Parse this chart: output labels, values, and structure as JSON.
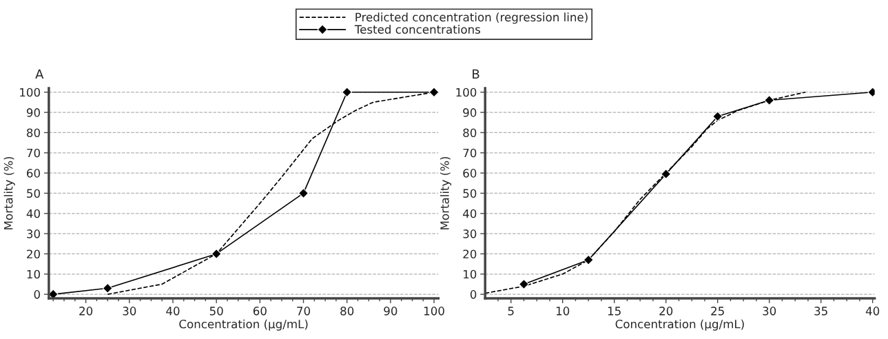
{
  "chart_data": [
    {
      "type": "line",
      "title": "A",
      "xlabel": "Concentration (µg/mL)",
      "ylabel": "Mortality (%)",
      "xlim": [
        11.5,
        101
      ],
      "ylim": [
        -2,
        102
      ],
      "xticks": [
        {
          "value": 12.5,
          "label": null
        },
        {
          "value": 15,
          "label": null
        },
        {
          "value": 17.5,
          "label": null
        },
        20,
        {
          "value": 22.5,
          "label": null
        },
        {
          "value": 25,
          "label": null
        },
        {
          "value": 27.5,
          "label": null
        },
        30,
        {
          "value": 32.5,
          "label": null
        },
        {
          "value": 35,
          "label": null
        },
        {
          "value": 37.5,
          "label": null
        },
        40,
        {
          "value": 42.5,
          "label": null
        },
        {
          "value": 45,
          "label": null
        },
        {
          "value": 47.5,
          "label": null
        },
        50,
        {
          "value": 52.5,
          "label": null
        },
        {
          "value": 55,
          "label": null
        },
        {
          "value": 57.5,
          "label": null
        },
        60,
        {
          "value": 62.5,
          "label": null
        },
        {
          "value": 65,
          "label": null
        },
        {
          "value": 67.5,
          "label": null
        },
        70,
        {
          "value": 72.5,
          "label": null
        },
        {
          "value": 75,
          "label": null
        },
        {
          "value": 77.5,
          "label": null
        },
        80,
        {
          "value": 82.5,
          "label": null
        },
        {
          "value": 85,
          "label": null
        },
        {
          "value": 87.5,
          "label": null
        },
        90,
        {
          "value": 92.5,
          "label": null
        },
        {
          "value": 95,
          "label": null
        },
        {
          "value": 97.5,
          "label": null
        },
        100
      ],
      "yticks": [
        0,
        10,
        20,
        30,
        40,
        50,
        60,
        70,
        80,
        90,
        100
      ],
      "grid": "y",
      "legend": "top",
      "series": [
        {
          "name": "Predicted concentration (regression line)",
          "color": "#000000",
          "line_style": "dashed",
          "marker": "none",
          "x": [
            25,
            37.5,
            50,
            60,
            65,
            72,
            78,
            82,
            86,
            100
          ],
          "values": [
            0,
            5,
            20,
            45,
            58,
            77,
            86,
            91,
            95,
            100
          ]
        },
        {
          "name": "Tested concentrations",
          "color": "#000000",
          "line_style": "solid",
          "marker": "diamond",
          "x": [
            12.5,
            25,
            50,
            70,
            80,
            100
          ],
          "values": [
            0,
            3,
            20,
            50,
            100,
            100
          ]
        }
      ]
    },
    {
      "type": "line",
      "title": "B",
      "xlabel": "Concentration (µg/mL)",
      "ylabel": "Mortality (%)",
      "xlim": [
        2.5,
        40.2
      ],
      "ylim": [
        -2,
        102
      ],
      "xticks": [
        {
          "value": 3.75,
          "label": null
        },
        5,
        {
          "value": 6.25,
          "label": null
        },
        {
          "value": 7.5,
          "label": null
        },
        {
          "value": 8.75,
          "label": null
        },
        10,
        {
          "value": 11.25,
          "label": null
        },
        {
          "value": 12.5,
          "label": null
        },
        {
          "value": 13.75,
          "label": null
        },
        15,
        {
          "value": 16.25,
          "label": null
        },
        {
          "value": 17.5,
          "label": null
        },
        {
          "value": 18.75,
          "label": null
        },
        20,
        {
          "value": 21.25,
          "label": null
        },
        {
          "value": 22.5,
          "label": null
        },
        {
          "value": 23.75,
          "label": null
        },
        25,
        {
          "value": 26.25,
          "label": null
        },
        {
          "value": 27.5,
          "label": null
        },
        {
          "value": 28.75,
          "label": null
        },
        30,
        {
          "value": 31.25,
          "label": null
        },
        {
          "value": 32.5,
          "label": null
        },
        {
          "value": 33.75,
          "label": null
        },
        35,
        {
          "value": 36.25,
          "label": null
        },
        {
          "value": 37.5,
          "label": null
        },
        {
          "value": 38.75,
          "label": null
        },
        40
      ],
      "yticks": [
        0,
        10,
        20,
        30,
        40,
        50,
        60,
        70,
        80,
        90,
        100
      ],
      "grid": "y",
      "legend": "top",
      "series": [
        {
          "name": "Predicted concentration (regression line)",
          "color": "#000000",
          "line_style": "dashed",
          "marker": "none",
          "x": [
            2.5,
            6.25,
            10,
            12.5,
            15,
            17.5,
            20,
            22.5,
            24,
            25,
            27,
            30,
            33.5
          ],
          "values": [
            0.5,
            4,
            10,
            17,
            31,
            47,
            60,
            73,
            82,
            86,
            91,
            96,
            100
          ]
        },
        {
          "name": "Tested concentrations",
          "color": "#000000",
          "line_style": "solid",
          "marker": "diamond",
          "x": [
            6.25,
            12.5,
            20,
            25,
            30,
            40
          ],
          "values": [
            5,
            17,
            59.5,
            88,
            96,
            100
          ]
        }
      ]
    }
  ]
}
